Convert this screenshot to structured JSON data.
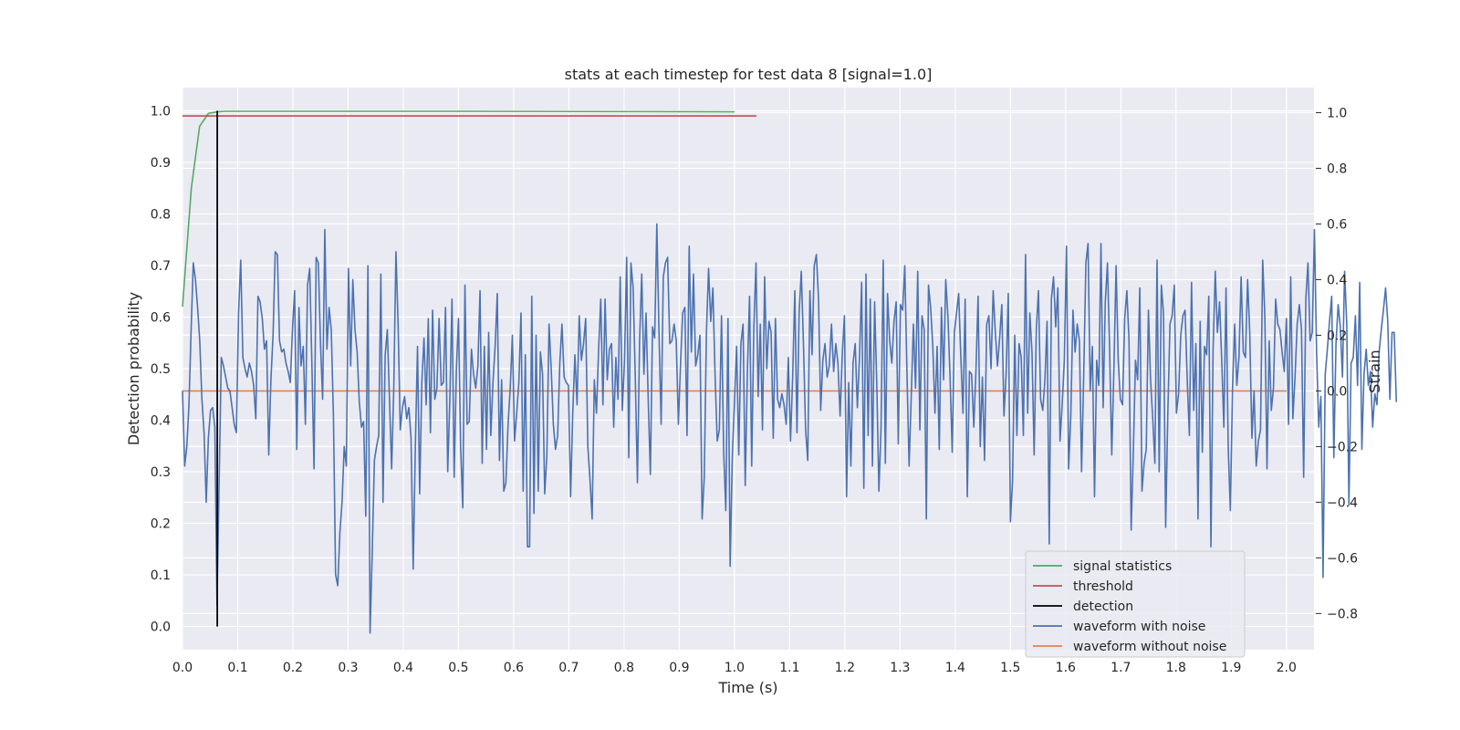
{
  "chart_data": {
    "type": "line",
    "title": "stats at each timestep for test data 8 [signal=1.0]",
    "xlabel": "Time (s)",
    "ylabel": "Detection probability",
    "y2label": "Strain",
    "xlim": [
      0.0,
      2.05
    ],
    "ylim": [
      -0.045,
      1.045
    ],
    "y2lim": [
      -0.93,
      1.09
    ],
    "xticks": [
      "0.0",
      "0.1",
      "0.2",
      "0.3",
      "0.4",
      "0.5",
      "0.6",
      "0.7",
      "0.8",
      "0.9",
      "1.0",
      "1.1",
      "1.2",
      "1.3",
      "1.4",
      "1.5",
      "1.6",
      "1.7",
      "1.8",
      "1.9",
      "2.0"
    ],
    "yticks": [
      "0.0",
      "0.1",
      "0.2",
      "0.3",
      "0.4",
      "0.5",
      "0.6",
      "0.7",
      "0.8",
      "0.9",
      "1.0"
    ],
    "y2ticks": [
      "−0.8",
      "−0.6",
      "−0.4",
      "−0.2",
      "0.0",
      "0.2",
      "0.4",
      "0.6",
      "0.8",
      "1.0"
    ],
    "grid": true,
    "legend_position": "lower-right",
    "series": [
      {
        "name": "signal statistics",
        "axis": "left",
        "color": "#55a868",
        "x": [
          0.0,
          0.016,
          0.031,
          0.047,
          0.063,
          0.078,
          0.094,
          0.5,
          1.0
        ],
        "y": [
          0.62,
          0.85,
          0.97,
          0.995,
          0.998,
          0.999,
          0.999,
          0.999,
          0.998
        ]
      },
      {
        "name": "threshold",
        "axis": "left",
        "color": "#c44e52",
        "x": [
          0.0,
          1.04
        ],
        "y": [
          0.99,
          0.99
        ]
      },
      {
        "name": "detection",
        "axis": "left",
        "color": "#000000",
        "x": [
          0.063,
          0.063
        ],
        "y": [
          0.0,
          1.0
        ]
      },
      {
        "name": "waveform with noise",
        "axis": "right",
        "color": "#4c72b0",
        "x_start": 0.0,
        "x_step": 0.00390625,
        "y": [
          0.0,
          -0.27,
          -0.2,
          -0.05,
          0.22,
          0.46,
          0.4,
          0.3,
          0.18,
          -0.03,
          -0.15,
          -0.4,
          -0.17,
          -0.07,
          -0.06,
          -0.13,
          -0.77,
          -0.32,
          0.12,
          0.09,
          0.05,
          0.01,
          0.0,
          -0.06,
          -0.12,
          -0.15,
          0.28,
          0.47,
          0.12,
          0.08,
          0.05,
          0.1,
          0.07,
          0.02,
          -0.1,
          0.34,
          0.32,
          0.26,
          0.15,
          0.18,
          -0.23,
          0.04,
          0.2,
          0.5,
          0.49,
          0.18,
          0.14,
          0.15,
          0.1,
          0.07,
          0.03,
          0.22,
          0.36,
          -0.21,
          0.3,
          0.09,
          0.16,
          -0.12,
          0.38,
          0.44,
          0.1,
          -0.28,
          0.48,
          0.46,
          0.17,
          -0.03,
          0.58,
          0.15,
          0.3,
          0.22,
          -0.09,
          -0.66,
          -0.7,
          -0.51,
          -0.4,
          -0.2,
          -0.27,
          0.44,
          0.09,
          0.4,
          0.22,
          0.14,
          -0.04,
          -0.13,
          -0.11,
          -0.45,
          0.45,
          -0.87,
          -0.58,
          -0.25,
          -0.2,
          -0.16,
          0.42,
          -0.4,
          0.13,
          0.22,
          -0.03,
          -0.28,
          0.01,
          0.5,
          0.24,
          -0.14,
          -0.06,
          -0.02,
          -0.1,
          -0.06,
          -0.17,
          -0.64,
          -0.2,
          0.16,
          -0.37,
          0.03,
          0.19,
          -0.05,
          0.26,
          -0.15,
          0.29,
          -0.03,
          0.01,
          0.26,
          0.02,
          0.03,
          0.3,
          -0.29,
          -0.03,
          0.33,
          -0.31,
          0.07,
          0.26,
          -0.2,
          -0.42,
          0.38,
          -0.12,
          -0.11,
          0.15,
          0.06,
          0.01,
          0.09,
          0.36,
          -0.26,
          0.16,
          -0.21,
          0.21,
          -0.16,
          0.03,
          0.16,
          0.35,
          -0.25,
          0.04,
          -0.36,
          -0.33,
          -0.12,
          0.01,
          0.2,
          -0.18,
          -0.08,
          0.03,
          0.28,
          -0.36,
          0.13,
          -0.56,
          -0.56,
          0.34,
          -0.44,
          0.2,
          -0.36,
          0.14,
          0.06,
          -0.37,
          -0.23,
          0.24,
          0.08,
          -0.12,
          -0.21,
          -0.16,
          0.1,
          0.24,
          0.05,
          0.03,
          0.02,
          -0.38,
          -0.08,
          0.13,
          -0.05,
          0.27,
          0.11,
          0.17,
          0.26,
          -0.2,
          -0.32,
          -0.46,
          0.04,
          -0.08,
          0.15,
          0.33,
          -0.05,
          0.33,
          0.04,
          0.15,
          0.17,
          -0.13,
          0.12,
          -0.03,
          0.41,
          -0.07,
          0.11,
          0.48,
          -0.24,
          0.46,
          0.37,
          0.05,
          -0.33,
          0.18,
          0.42,
          0.06,
          0.28,
          -0.03,
          -0.3,
          0.23,
          0.19,
          0.6,
          0.21,
          -0.12,
          0.41,
          0.46,
          0.48,
          0.17,
          0.18,
          0.24,
          0.18,
          -0.12,
          0.1,
          0.28,
          0.3,
          -0.16,
          0.52,
          0.14,
          0.42,
          0.09,
          0.13,
          0.2,
          -0.46,
          -0.31,
          0.21,
          0.44,
          0.25,
          0.37,
          0.06,
          -0.18,
          -0.14,
          0.27,
          -0.22,
          -0.43,
          0.26,
          -0.63,
          -0.24,
          -0.04,
          0.16,
          -0.23,
          0.17,
          0.24,
          -0.34,
          0.07,
          0.34,
          -0.27,
          0.23,
          0.46,
          -0.02,
          0.24,
          -0.14,
          0.41,
          0.08,
          0.25,
          0.21,
          -0.17,
          0.26,
          -0.03,
          -0.06,
          -0.01,
          -0.05,
          -0.12,
          0.12,
          -0.18,
          0.05,
          0.36,
          -0.15,
          0.28,
          0.43,
          0.17,
          -0.14,
          -0.25,
          0.36,
          0.13,
          0.45,
          0.49,
          0.33,
          -0.07,
          0.11,
          0.17,
          0.05,
          0.09,
          0.24,
          0.07,
          0.17,
          0.1,
          -0.09,
          0.13,
          0.27,
          -0.38,
          0.03,
          -0.27,
          0.1,
          0.17,
          -0.06,
          0.12,
          0.39,
          -0.35,
          0.42,
          -0.16,
          0.33,
          -0.27,
          0.32,
          0.03,
          -0.36,
          -0.13,
          0.47,
          -0.26,
          0.35,
          0.18,
          0.1,
          0.25,
          0.32,
          -0.19,
          0.31,
          0.29,
          0.45,
          0.07,
          -0.27,
          -0.02,
          0.24,
          0.01,
          0.43,
          -0.14,
          0.27,
          0.22,
          -0.46,
          0.38,
          0.3,
          0.16,
          -0.08,
          0.16,
          -0.21,
          0.3,
          0.04,
          0.4,
          0.27,
          0.05,
          -0.22,
          0.21,
          0.28,
          0.35,
          0.12,
          -0.08,
          0.33,
          -0.38,
          0.07,
          0.06,
          -0.13,
          0.07,
          0.34,
          -0.2,
          0.05,
          -0.25,
          0.24,
          0.27,
          0.08,
          0.36,
          0.21,
          0.09,
          0.19,
          0.31,
          -0.09,
          0.06,
          0.35,
          -0.47,
          -0.32,
          0.2,
          -0.16,
          0.17,
          0.12,
          -0.16,
          0.49,
          -0.08,
          0.28,
          0.14,
          -0.23,
          0.22,
          0.36,
          -0.03,
          -0.07,
          0.04,
          0.25,
          -0.55,
          0.33,
          0.41,
          0.23,
          0.37,
          -0.18,
          -0.05,
          0.11,
          0.52,
          -0.28,
          -0.09,
          0.29,
          0.14,
          0.24,
          0.18,
          -0.29,
          0.06,
          0.46,
          0.53,
          0.0,
          0.16,
          -0.38,
          0.11,
          0.02,
          0.53,
          -0.06,
          0.32,
          0.46,
          0.15,
          -0.23,
          0.08,
          0.45,
          0.11,
          -0.03,
          -0.05,
          0.26,
          0.36,
          0.18,
          -0.5,
          -0.22,
          0.11,
          0.04,
          0.37,
          -0.36,
          -0.26,
          -0.21,
          0.29,
          0.04,
          -0.1,
          -0.26,
          0.47,
          -0.29,
          0.38,
          0.28,
          -0.49,
          -0.08,
          0.24,
          0.27,
          0.38,
          -0.08,
          -0.01,
          0.2,
          0.27,
          0.29,
          0.04,
          -0.16,
          0.39,
          -0.07,
          0.17,
          -0.46,
          0.25,
          -0.22,
          0.16,
          0.13,
          0.34,
          -0.56,
          0.15,
          0.43,
          0.21,
          0.32,
          0.11,
          -0.13,
          0.37,
          -0.2,
          -0.43,
          0.01,
          0.24,
          0.02,
          0.12,
          0.41,
          0.14,
          0.12,
          0.4,
          0.21,
          -0.17,
          0.0,
          -0.27,
          -0.18,
          -0.14,
          0.47,
          0.27,
          -0.28,
          0.18,
          -0.07,
          0.01,
          0.33,
          0.24,
          0.22,
          0.14,
          0.07,
          0.26,
          -0.12,
          0.41,
          -0.1,
          0.05,
          0.24,
          0.31,
          0.22,
          -0.31,
          0.33,
          0.46,
          0.18,
          0.21,
          0.58,
          0.14,
          -0.13,
          -0.02,
          -0.67,
          0.06,
          0.15,
          0.25,
          0.34,
          -0.24,
          0.17,
          0.31,
          0.23,
          0.05,
          0.43,
          0.24,
          -0.41,
          0.1,
          0.12,
          0.27,
          0.02,
          0.39,
          -0.21,
          0.06,
          0.15,
          0.02,
          0.07,
          -0.13,
          -0.01,
          -0.05,
          0.14,
          0.22,
          0.29,
          0.37,
          0.25,
          -0.03,
          0.21,
          0.21,
          -0.04
        ]
      },
      {
        "name": "waveform without noise",
        "axis": "right",
        "color": "#dd8452",
        "x": [
          0.0,
          2.0
        ],
        "y": [
          0.0,
          0.0
        ]
      }
    ]
  }
}
